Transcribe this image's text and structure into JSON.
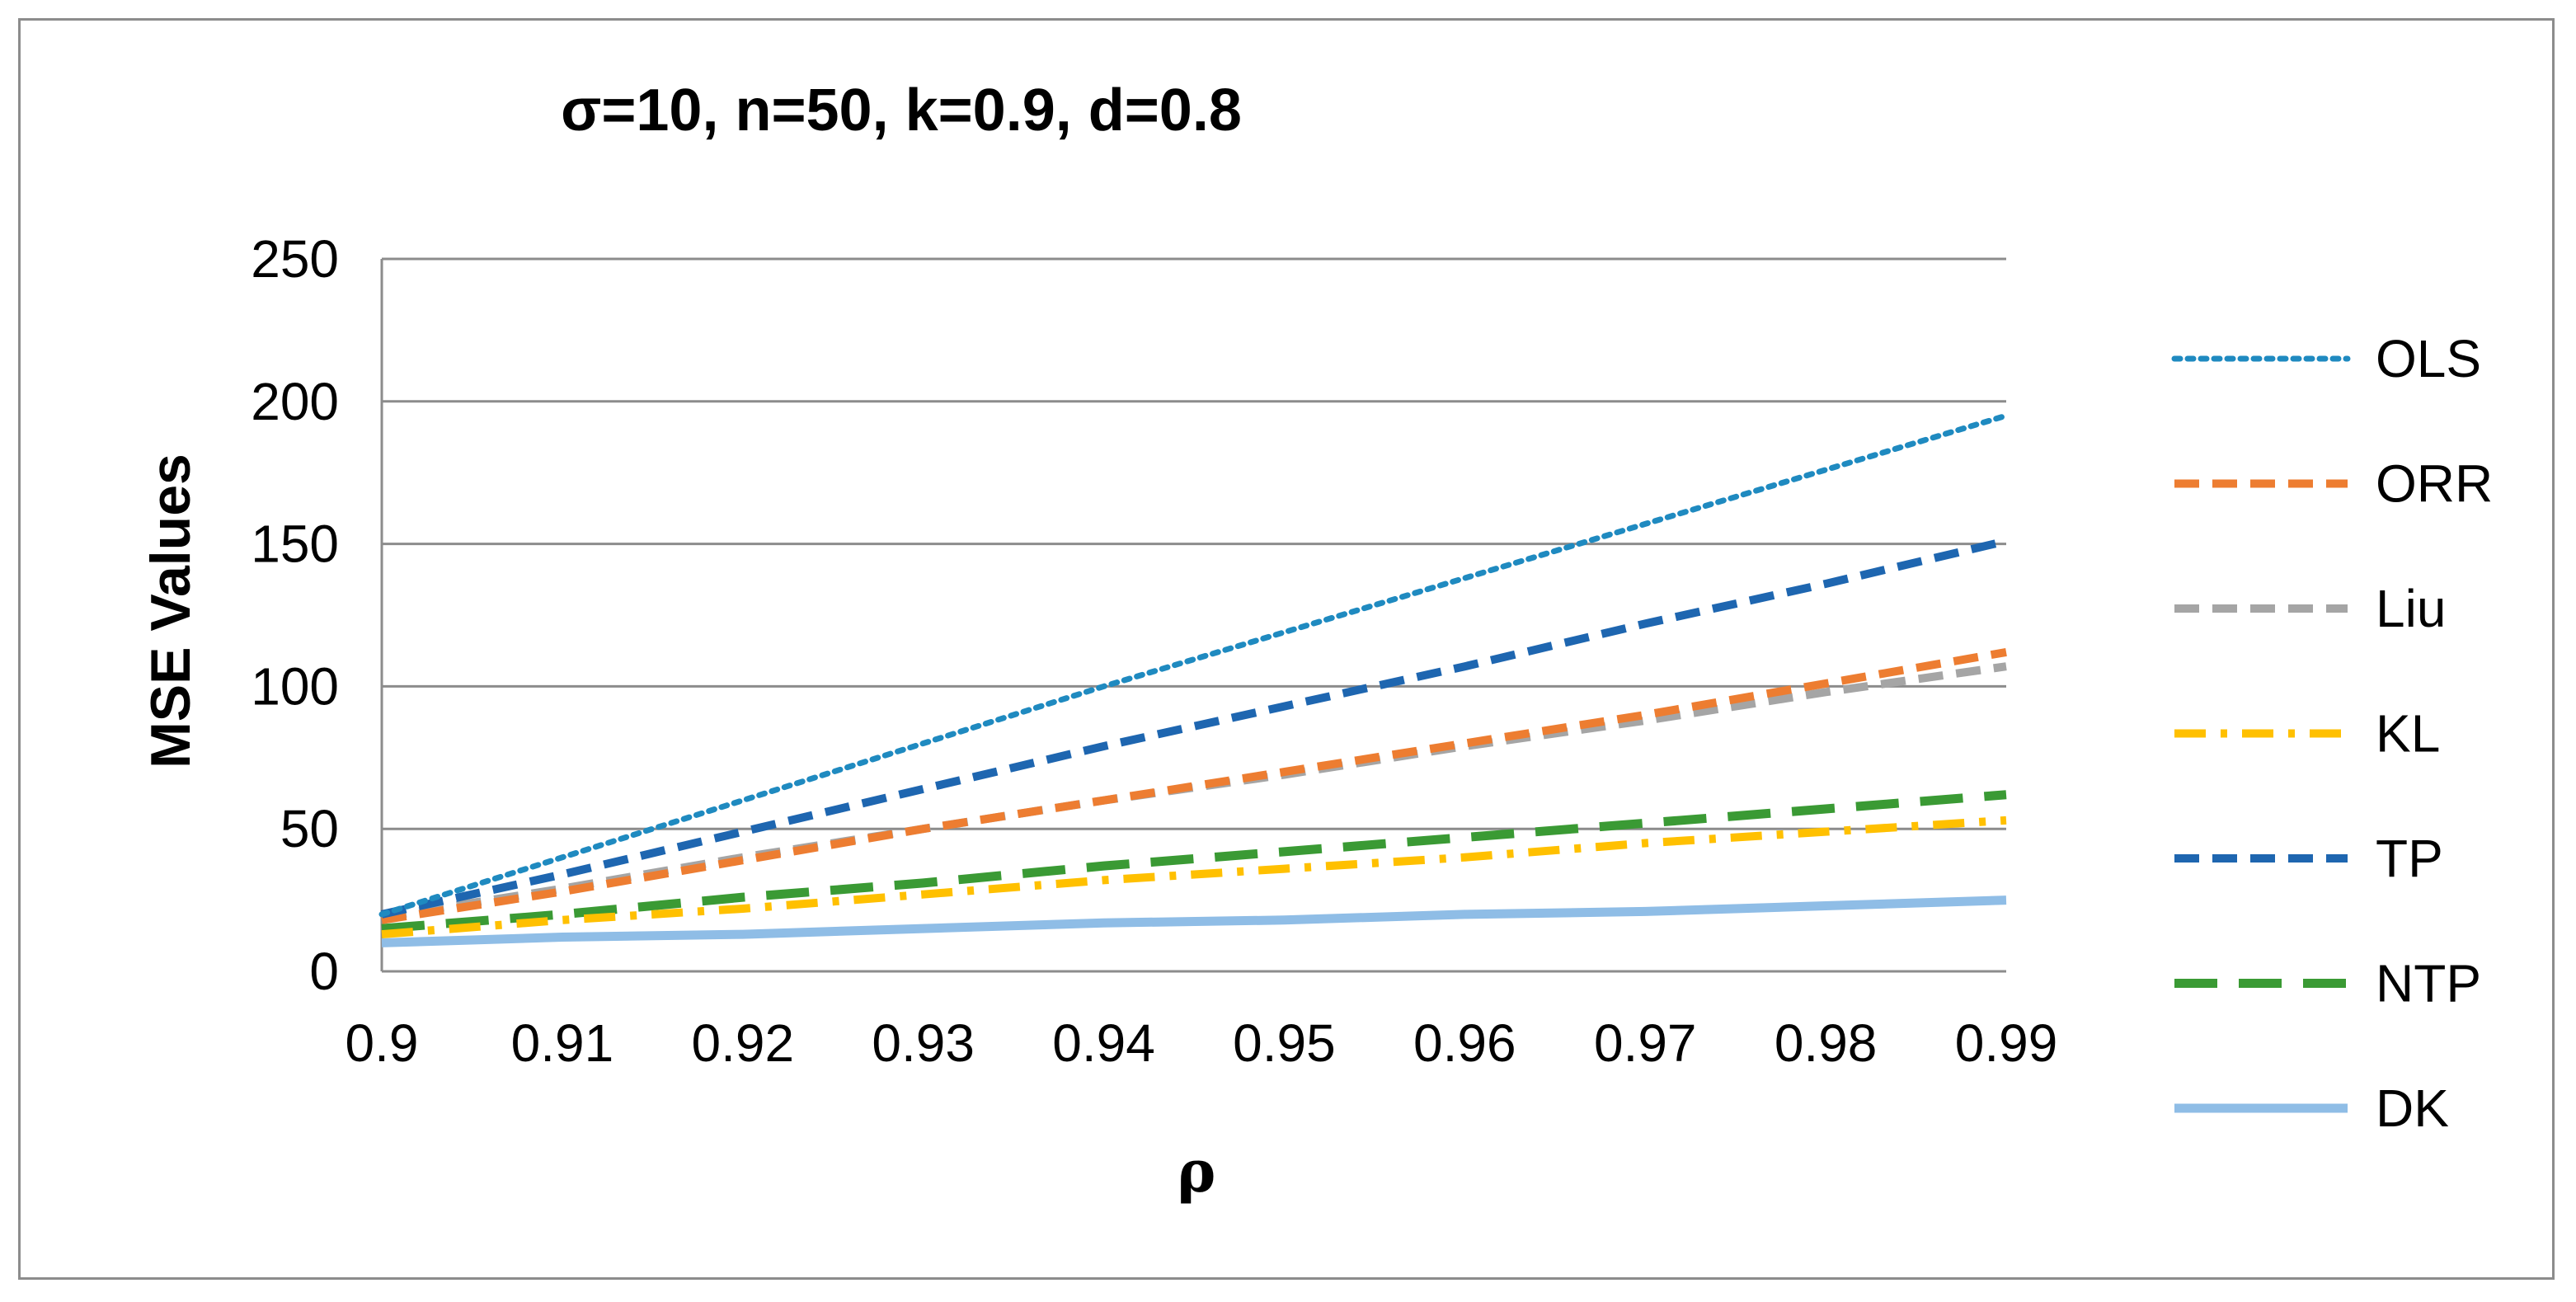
{
  "chart_data": {
    "type": "line",
    "title": "σ=10, n=50, k=0.9, d=0.8",
    "xlabel": "ρ",
    "ylabel": "MSE Values",
    "x": [
      0.9,
      0.91,
      0.92,
      0.93,
      0.94,
      0.95,
      0.96,
      0.97,
      0.98,
      0.99
    ],
    "x_tick_labels": [
      "0.9",
      "0.91",
      "0.92",
      "0.93",
      "0.94",
      "0.95",
      "0.96",
      "0.97",
      "0.98",
      "0.99"
    ],
    "xlim": [
      0.9,
      0.99
    ],
    "ylim": [
      0,
      250
    ],
    "y_ticks": [
      0,
      50,
      100,
      150,
      200,
      250
    ],
    "y_tick_labels": [
      "0",
      "50",
      "100",
      "150",
      "200",
      "250"
    ],
    "grid": true,
    "legend_position": "right",
    "series": [
      {
        "name": "OLS",
        "color": "#1f8ac0",
        "style": "dotted",
        "values": [
          20,
          40,
          60,
          80,
          100,
          119,
          138,
          157,
          176,
          195
        ]
      },
      {
        "name": "ORR",
        "color": "#ed7d31",
        "style": "dashed",
        "values": [
          18,
          28,
          39,
          50,
          60,
          70,
          80,
          90,
          101,
          112
        ]
      },
      {
        "name": "Liu",
        "color": "#a5a5a5",
        "style": "dashed",
        "values": [
          19,
          29,
          40,
          50,
          60,
          69,
          79,
          88,
          98,
          107
        ]
      },
      {
        "name": "KL",
        "color": "#ffc000",
        "style": "dashdot",
        "values": [
          13,
          18,
          22,
          27,
          32,
          36,
          40,
          45,
          49,
          53
        ]
      },
      {
        "name": "TP",
        "color": "#1e66b0",
        "style": "dashed",
        "values": [
          20,
          34,
          49,
          64,
          79,
          93,
          107,
          122,
          136,
          151
        ]
      },
      {
        "name": "NTP",
        "color": "#3a9a34",
        "style": "longdash",
        "values": [
          15,
          20,
          26,
          31,
          37,
          42,
          47,
          52,
          57,
          62
        ]
      },
      {
        "name": "DK",
        "color": "#8fbde6",
        "style": "solid",
        "values": [
          10,
          12,
          13,
          15,
          17,
          18,
          20,
          21,
          23,
          25
        ]
      }
    ]
  }
}
